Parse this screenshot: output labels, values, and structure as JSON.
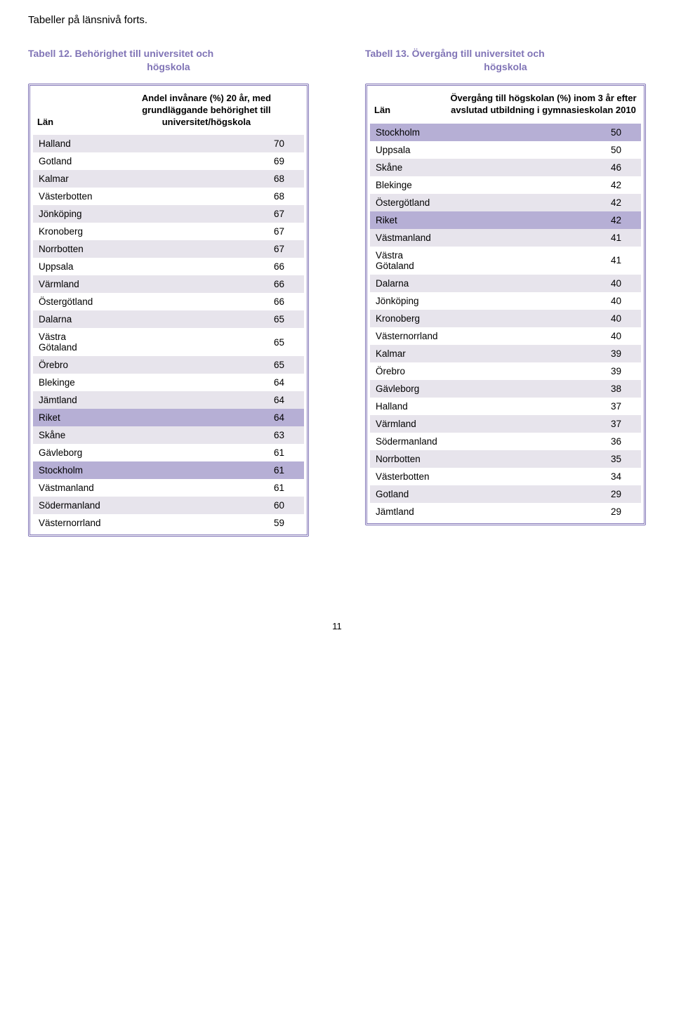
{
  "colors": {
    "accent": "#8074b6",
    "band_light": "#e7e4ec",
    "band_dark": "#b6afd5",
    "bg": "#ffffff",
    "text": "#000000"
  },
  "page_heading": "Tabeller på länsnivå forts.",
  "page_number": "11",
  "left": {
    "title_line1": "Tabell 12. Behörighet till universitet och",
    "title_line2": "högskola",
    "col_label": "Län",
    "val_label": "Andel invånare (%) 20 år, med grundläggande behörighet till universitet/högskola",
    "rows": [
      {
        "name": "Halland",
        "value": "70",
        "band": "light"
      },
      {
        "name": "Gotland",
        "value": "69",
        "band": "white"
      },
      {
        "name": "Kalmar",
        "value": "68",
        "band": "light"
      },
      {
        "name": "Västerbotten",
        "value": "68",
        "band": "white"
      },
      {
        "name": "Jönköping",
        "value": "67",
        "band": "light"
      },
      {
        "name": "Kronoberg",
        "value": "67",
        "band": "white"
      },
      {
        "name": "Norrbotten",
        "value": "67",
        "band": "light"
      },
      {
        "name": "Uppsala",
        "value": "66",
        "band": "white"
      },
      {
        "name": "Värmland",
        "value": "66",
        "band": "light"
      },
      {
        "name": "Östergötland",
        "value": "66",
        "band": "white"
      },
      {
        "name": "Dalarna",
        "value": "65",
        "band": "light"
      },
      {
        "name": "Västra Götaland",
        "value": "65",
        "band": "white"
      },
      {
        "name": "Örebro",
        "value": "65",
        "band": "light"
      },
      {
        "name": "Blekinge",
        "value": "64",
        "band": "white"
      },
      {
        "name": "Jämtland",
        "value": "64",
        "band": "light"
      },
      {
        "name": "Riket",
        "value": "64",
        "band": "dark"
      },
      {
        "name": "Skåne",
        "value": "63",
        "band": "light"
      },
      {
        "name": "Gävleborg",
        "value": "61",
        "band": "white"
      },
      {
        "name": "Stockholm",
        "value": "61",
        "band": "dark"
      },
      {
        "name": "Västmanland",
        "value": "61",
        "band": "white"
      },
      {
        "name": "Södermanland",
        "value": "60",
        "band": "light"
      },
      {
        "name": "Västernorrland",
        "value": "59",
        "band": "white"
      }
    ]
  },
  "right": {
    "title_line1": "Tabell 13. Övergång till universitet och",
    "title_line2": "högskola",
    "col_label": "Län",
    "val_label": "Övergång till högskolan (%) inom 3 år efter avslutad utbildning i gymnasieskolan 2010",
    "rows": [
      {
        "name": "Stockholm",
        "value": "50",
        "band": "dark"
      },
      {
        "name": "Uppsala",
        "value": "50",
        "band": "white"
      },
      {
        "name": "Skåne",
        "value": "46",
        "band": "light"
      },
      {
        "name": "Blekinge",
        "value": "42",
        "band": "white"
      },
      {
        "name": "Östergötland",
        "value": "42",
        "band": "light"
      },
      {
        "name": "Riket",
        "value": "42",
        "band": "dark"
      },
      {
        "name": "Västmanland",
        "value": "41",
        "band": "light"
      },
      {
        "name": "Västra Götaland",
        "value": "41",
        "band": "white"
      },
      {
        "name": "Dalarna",
        "value": "40",
        "band": "light"
      },
      {
        "name": "Jönköping",
        "value": "40",
        "band": "white"
      },
      {
        "name": "Kronoberg",
        "value": "40",
        "band": "light"
      },
      {
        "name": "Västernorrland",
        "value": "40",
        "band": "white"
      },
      {
        "name": "Kalmar",
        "value": "39",
        "band": "light"
      },
      {
        "name": "Örebro",
        "value": "39",
        "band": "white"
      },
      {
        "name": "Gävleborg",
        "value": "38",
        "band": "light"
      },
      {
        "name": "Halland",
        "value": "37",
        "band": "white"
      },
      {
        "name": "Värmland",
        "value": "37",
        "band": "light"
      },
      {
        "name": "Södermanland",
        "value": "36",
        "band": "white"
      },
      {
        "name": "Norrbotten",
        "value": "35",
        "band": "light"
      },
      {
        "name": "Västerbotten",
        "value": "34",
        "band": "white"
      },
      {
        "name": "Gotland",
        "value": "29",
        "band": "light"
      },
      {
        "name": "Jämtland",
        "value": "29",
        "band": "white"
      }
    ]
  }
}
